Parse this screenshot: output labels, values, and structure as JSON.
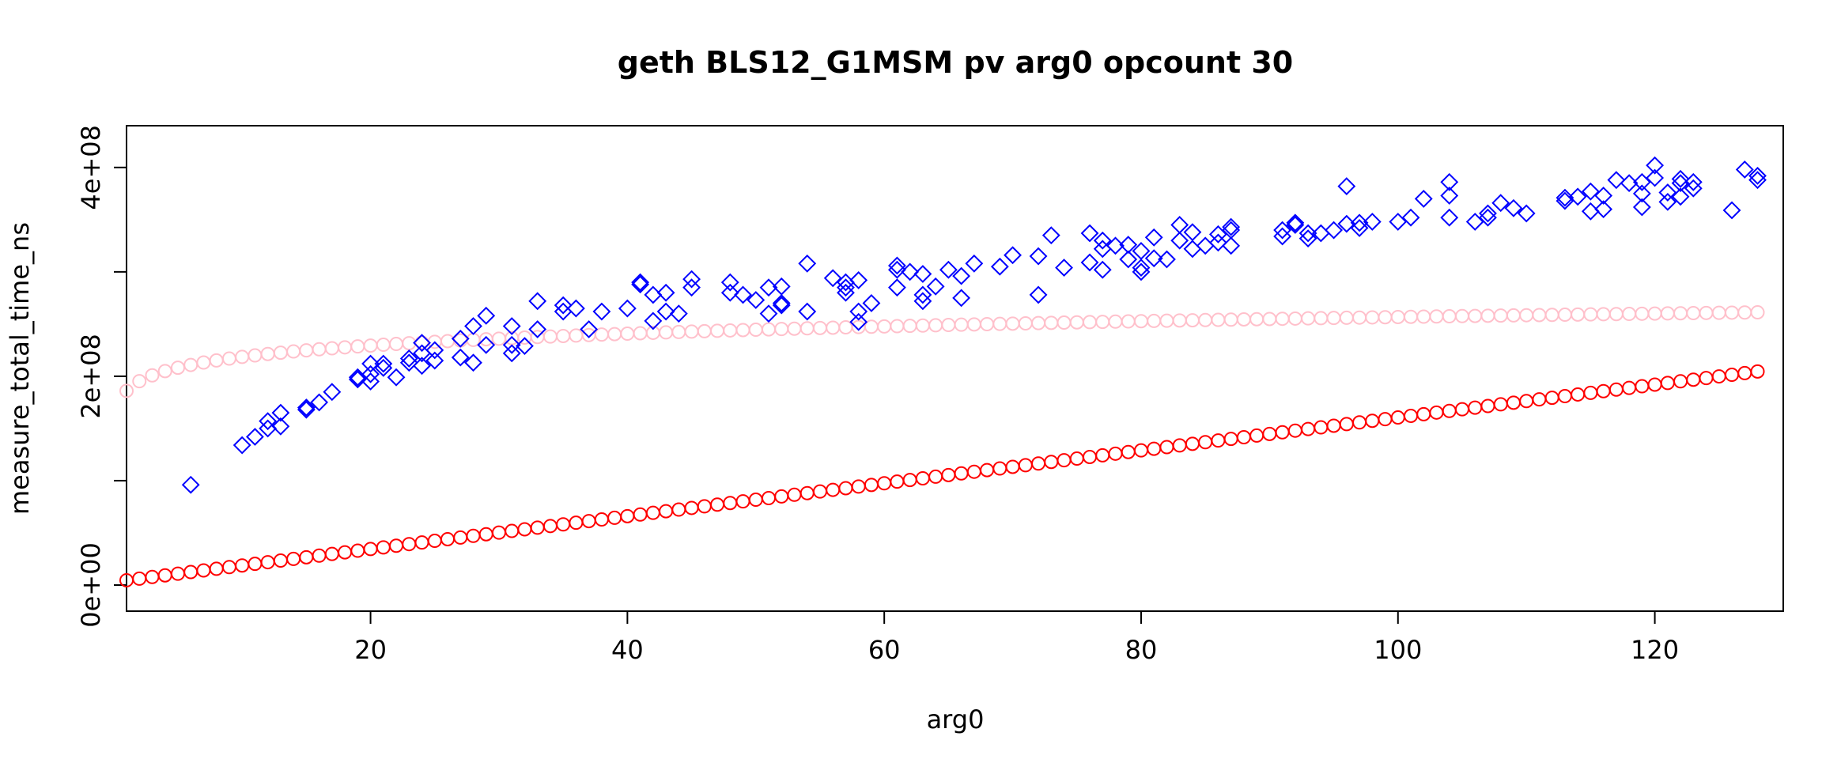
{
  "chart_data": {
    "type": "scatter",
    "title": "geth BLS12_G1MSM pv arg0 opcount 30",
    "xlabel": "arg0",
    "ylabel": "measure_total_time_ns",
    "xlim": [
      1,
      130
    ],
    "ylim": [
      -25000000,
      440000000
    ],
    "x_ticks": [
      20,
      40,
      60,
      80,
      100,
      120
    ],
    "x_tick_labels": [
      "20",
      "40",
      "60",
      "80",
      "100",
      "120"
    ],
    "y_ticks": [
      0,
      100000000,
      200000000,
      300000000,
      400000000
    ],
    "y_tick_labels": [
      "0e+00",
      "",
      "2e+08",
      "",
      "4e+08"
    ],
    "grid": false,
    "legend": "none",
    "series": [
      {
        "marker": "circle",
        "color": "#FFC0CB",
        "x_start": 1,
        "x_end": 128,
        "x_step": 1,
        "model": "power",
        "a": 186000000,
        "b": 0.07
      },
      {
        "marker": "circle",
        "color": "#FF0000",
        "x_start": 1,
        "x_end": 128,
        "x_step": 1,
        "model": "linear",
        "intercept": 3000000,
        "slope": 1575000
      },
      {
        "marker": "diamond",
        "color": "#0000FF",
        "points": [
          [
            6,
            96000000
          ],
          [
            10,
            134000000
          ],
          [
            11,
            142000000
          ],
          [
            12,
            150000000
          ],
          [
            12,
            157000000
          ],
          [
            13,
            165000000
          ],
          [
            13,
            152000000
          ],
          [
            15,
            168000000
          ],
          [
            15,
            170000000
          ],
          [
            16,
            175000000
          ],
          [
            17,
            185000000
          ],
          [
            19,
            197000000
          ],
          [
            19,
            199000000
          ],
          [
            20,
            202000000
          ],
          [
            20,
            195000000
          ],
          [
            20,
            212000000
          ],
          [
            21,
            208000000
          ],
          [
            21,
            212000000
          ],
          [
            22,
            199000000
          ],
          [
            23,
            213000000
          ],
          [
            23,
            217000000
          ],
          [
            24,
            210000000
          ],
          [
            24,
            222000000
          ],
          [
            24,
            232000000
          ],
          [
            25,
            215000000
          ],
          [
            25,
            225000000
          ],
          [
            27,
            218000000
          ],
          [
            27,
            236000000
          ],
          [
            28,
            213000000
          ],
          [
            28,
            248000000
          ],
          [
            29,
            230000000
          ],
          [
            29,
            258000000
          ],
          [
            31,
            222000000
          ],
          [
            31,
            230000000
          ],
          [
            31,
            248000000
          ],
          [
            32,
            229000000
          ],
          [
            33,
            245000000
          ],
          [
            33,
            272000000
          ],
          [
            35,
            262000000
          ],
          [
            35,
            268000000
          ],
          [
            36,
            265000000
          ],
          [
            37,
            245000000
          ],
          [
            38,
            262000000
          ],
          [
            40,
            265000000
          ],
          [
            41,
            290000000
          ],
          [
            41,
            288000000
          ],
          [
            42,
            253000000
          ],
          [
            42,
            278000000
          ],
          [
            43,
            262000000
          ],
          [
            43,
            280000000
          ],
          [
            44,
            260000000
          ],
          [
            45,
            285000000
          ],
          [
            45,
            293000000
          ],
          [
            48,
            290000000
          ],
          [
            48,
            280000000
          ],
          [
            49,
            278000000
          ],
          [
            50,
            273000000
          ],
          [
            51,
            260000000
          ],
          [
            51,
            285000000
          ],
          [
            52,
            268000000
          ],
          [
            52,
            286000000
          ],
          [
            52,
            270000000
          ],
          [
            54,
            262000000
          ],
          [
            54,
            308000000
          ],
          [
            56,
            294000000
          ],
          [
            57,
            280000000
          ],
          [
            57,
            285000000
          ],
          [
            57,
            290000000
          ],
          [
            58,
            252000000
          ],
          [
            58,
            262000000
          ],
          [
            58,
            292000000
          ],
          [
            59,
            270000000
          ],
          [
            61,
            285000000
          ],
          [
            61,
            302000000
          ],
          [
            61,
            306000000
          ],
          [
            62,
            300000000
          ],
          [
            63,
            272000000
          ],
          [
            63,
            278000000
          ],
          [
            63,
            298000000
          ],
          [
            64,
            286000000
          ],
          [
            65,
            302000000
          ],
          [
            66,
            275000000
          ],
          [
            66,
            296000000
          ],
          [
            67,
            308000000
          ],
          [
            69,
            305000000
          ],
          [
            70,
            316000000
          ],
          [
            72,
            278000000
          ],
          [
            72,
            315000000
          ],
          [
            73,
            335000000
          ],
          [
            74,
            304000000
          ],
          [
            76,
            309000000
          ],
          [
            76,
            337000000
          ],
          [
            77,
            302000000
          ],
          [
            77,
            322000000
          ],
          [
            77,
            330000000
          ],
          [
            78,
            325000000
          ],
          [
            79,
            312000000
          ],
          [
            79,
            326000000
          ],
          [
            80,
            300000000
          ],
          [
            80,
            304000000
          ],
          [
            80,
            320000000
          ],
          [
            81,
            313000000
          ],
          [
            81,
            333000000
          ],
          [
            82,
            312000000
          ],
          [
            83,
            330000000
          ],
          [
            83,
            345000000
          ],
          [
            84,
            322000000
          ],
          [
            84,
            338000000
          ],
          [
            85,
            325000000
          ],
          [
            86,
            328000000
          ],
          [
            86,
            336000000
          ],
          [
            87,
            325000000
          ],
          [
            87,
            340000000
          ],
          [
            87,
            343000000
          ],
          [
            91,
            334000000
          ],
          [
            91,
            340000000
          ],
          [
            92,
            345000000
          ],
          [
            92,
            347000000
          ],
          [
            93,
            332000000
          ],
          [
            93,
            337000000
          ],
          [
            94,
            337000000
          ],
          [
            95,
            340000000
          ],
          [
            96,
            346000000
          ],
          [
            96,
            382000000
          ],
          [
            97,
            342000000
          ],
          [
            97,
            347000000
          ],
          [
            98,
            348000000
          ],
          [
            100,
            348000000
          ],
          [
            101,
            352000000
          ],
          [
            102,
            370000000
          ],
          [
            104,
            352000000
          ],
          [
            104,
            373000000
          ],
          [
            104,
            386000000
          ],
          [
            106,
            348000000
          ],
          [
            107,
            352000000
          ],
          [
            107,
            356000000
          ],
          [
            108,
            366000000
          ],
          [
            109,
            361000000
          ],
          [
            110,
            356000000
          ],
          [
            113,
            368000000
          ],
          [
            113,
            371000000
          ],
          [
            114,
            372000000
          ],
          [
            115,
            358000000
          ],
          [
            115,
            377000000
          ],
          [
            116,
            360000000
          ],
          [
            116,
            373000000
          ],
          [
            117,
            388000000
          ],
          [
            118,
            385000000
          ],
          [
            119,
            362000000
          ],
          [
            119,
            375000000
          ],
          [
            119,
            386000000
          ],
          [
            120,
            390000000
          ],
          [
            120,
            402000000
          ],
          [
            121,
            367000000
          ],
          [
            121,
            376000000
          ],
          [
            122,
            372000000
          ],
          [
            122,
            385000000
          ],
          [
            122,
            389000000
          ],
          [
            123,
            380000000
          ],
          [
            123,
            386000000
          ],
          [
            126,
            359000000
          ],
          [
            127,
            398000000
          ],
          [
            128,
            388000000
          ],
          [
            128,
            392000000
          ]
        ]
      }
    ]
  }
}
